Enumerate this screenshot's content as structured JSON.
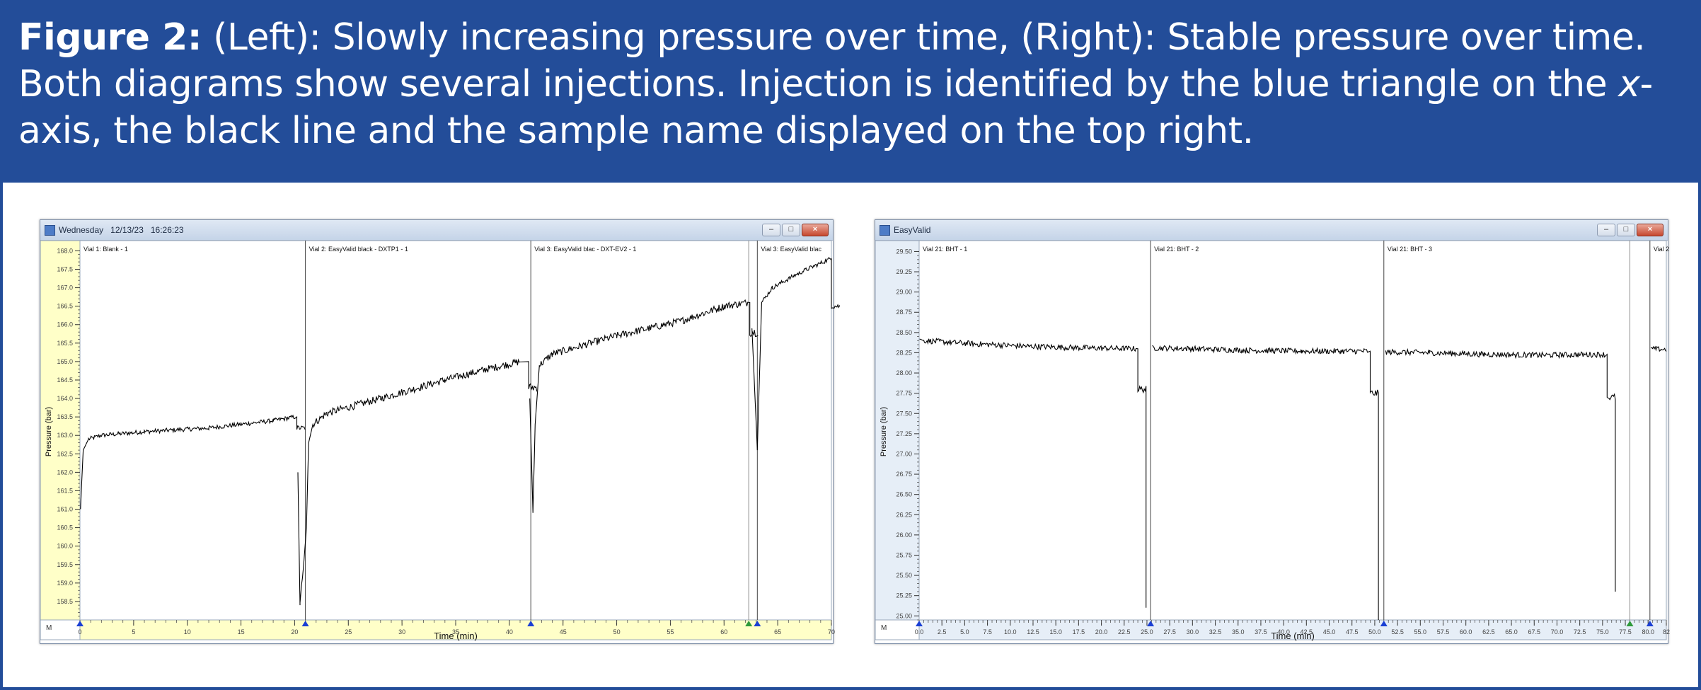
{
  "caption": {
    "label": "Figure 2:",
    "part1": " (Left): Slowly increasing pressure over time, (Right): Stable pressure over time. Both diagrams show several injections. Injection is identified by the blue triangle on the ",
    "axis_word": "x",
    "part2": "-axis, the black line and the sample name displayed on the top right."
  },
  "colors": {
    "banner": "#234d99",
    "yellow_axis": "#ffffc8",
    "axis_light": "#e6eef7",
    "marker_blue": "#1a3fd4",
    "marker_green": "#2e9a3a",
    "trace": "#000000"
  },
  "chart_data": [
    {
      "type": "line",
      "window_title": "Wednesday   12/13/23   16:26:23",
      "corner_label": "M",
      "ylabel": "Pressure (bar)",
      "xlabel": "Time (min)",
      "xlim": [
        0,
        70
      ],
      "ylim": [
        158.0,
        168.2
      ],
      "yticks": [
        "168.0",
        "167.5",
        "167.0",
        "166.5",
        "166.0",
        "165.5",
        "165.0",
        "164.5",
        "164.0",
        "163.5",
        "163.0",
        "162.5",
        "162.0",
        "161.5",
        "161.0",
        "160.5",
        "160.0",
        "159.5",
        "159.0",
        "158.5"
      ],
      "xticks": [
        "0",
        "5",
        "10",
        "15",
        "20",
        "25",
        "30",
        "35",
        "40",
        "45",
        "50",
        "55",
        "60",
        "65",
        "70"
      ],
      "injections": [
        {
          "time": 0.0,
          "label": "Vial   1: Blank - 1",
          "color": "blue"
        },
        {
          "time": 21.0,
          "label": "Vial   2: EasyValid black - DXTP1 - 1",
          "color": "blue"
        },
        {
          "time": 42.0,
          "label": "Vial   3: EasyValid blac - DXT-EV2 - 1",
          "color": "blue"
        },
        {
          "time": 62.3,
          "label": "",
          "color": "green"
        },
        {
          "time": 63.1,
          "label": "Vial   3: EasyValid blac",
          "color": "blue"
        }
      ],
      "segments": [
        {
          "start": 0.0,
          "end": 20.2,
          "points": [
            [
              0.05,
              161.0
            ],
            [
              0.3,
              162.6
            ],
            [
              0.8,
              162.9
            ],
            [
              2.0,
              163.0
            ],
            [
              6.0,
              163.1
            ],
            [
              12.0,
              163.2
            ],
            [
              18.0,
              163.4
            ],
            [
              20.0,
              163.5
            ]
          ],
          "noise": 0.06,
          "dip": 163.2
        },
        {
          "start": 20.2,
          "end": 41.8,
          "points": [
            [
              20.3,
              162.0
            ],
            [
              20.5,
              158.4
            ],
            [
              21.1,
              160.5
            ],
            [
              21.3,
              162.8
            ],
            [
              21.7,
              163.3
            ],
            [
              23.0,
              163.6
            ],
            [
              28.0,
              164.0
            ],
            [
              34.0,
              164.5
            ],
            [
              38.0,
              164.8
            ],
            [
              41.0,
              165.0
            ]
          ],
          "noise": 0.1,
          "dip": 164.3
        },
        {
          "start": 41.8,
          "end": 62.4,
          "points": [
            [
              41.9,
              164.0
            ],
            [
              42.2,
              160.9
            ],
            [
              42.4,
              163.3
            ],
            [
              42.8,
              164.9
            ],
            [
              44.0,
              165.2
            ],
            [
              50.0,
              165.7
            ],
            [
              56.0,
              166.1
            ],
            [
              60.0,
              166.5
            ],
            [
              62.2,
              166.6
            ]
          ],
          "noise": 0.1,
          "dip": 165.8
        },
        {
          "start": 62.4,
          "end": 70.0,
          "points": [
            [
              62.6,
              165.9
            ],
            [
              63.1,
              162.6
            ],
            [
              63.5,
              166.6
            ],
            [
              64.5,
              167.0
            ],
            [
              67.0,
              167.4
            ],
            [
              70.0,
              167.8
            ]
          ],
          "noise": 0.06,
          "dip": 166.5
        }
      ]
    },
    {
      "type": "line",
      "window_title": "EasyValid",
      "corner_label": "M",
      "ylabel": "Pressure (bar)",
      "xlabel": "Time (min)",
      "xlim": [
        0,
        82
      ],
      "ylim": [
        24.95,
        29.6
      ],
      "yticks": [
        "29.50",
        "29.25",
        "29.00",
        "28.75",
        "28.50",
        "28.25",
        "28.00",
        "27.75",
        "27.50",
        "27.25",
        "27.00",
        "26.75",
        "26.50",
        "26.25",
        "26.00",
        "25.75",
        "25.50",
        "25.25",
        "25.00"
      ],
      "xticks": [
        "0.0",
        "2.5",
        "5.0",
        "7.5",
        "10.0",
        "12.5",
        "15.0",
        "17.5",
        "20.0",
        "22.5",
        "25.0",
        "27.5",
        "30.0",
        "32.5",
        "35.0",
        "37.5",
        "40.0",
        "42.5",
        "45.0",
        "47.5",
        "50.0",
        "52.5",
        "55.0",
        "57.5",
        "60.0",
        "62.5",
        "65.0",
        "67.5",
        "70.0",
        "72.5",
        "75.0",
        "77.5",
        "80.0",
        "82"
      ],
      "injections": [
        {
          "time": 0.0,
          "label": "Vial   21: BHT - 1",
          "color": "blue"
        },
        {
          "time": 25.4,
          "label": "Vial   21: BHT - 2",
          "color": "blue"
        },
        {
          "time": 51.0,
          "label": "Vial   21: BHT - 3",
          "color": "blue"
        },
        {
          "time": 78.0,
          "label": "",
          "color": "green"
        },
        {
          "time": 80.2,
          "label": "Vial   2",
          "color": "blue"
        }
      ],
      "segments": [
        {
          "start": 0.0,
          "end": 24.0,
          "points": [
            [
              0.05,
              28.42
            ],
            [
              0.5,
              28.4
            ],
            [
              6.0,
              28.36
            ],
            [
              12.0,
              28.33
            ],
            [
              18.0,
              28.31
            ],
            [
              23.8,
              28.3
            ]
          ],
          "noise": 0.035,
          "dip": 27.8,
          "spike_down": 25.1
        },
        {
          "start": 25.4,
          "end": 49.5,
          "points": [
            [
              25.6,
              28.31
            ],
            [
              30.0,
              28.3
            ],
            [
              36.0,
              28.28
            ],
            [
              42.0,
              28.27
            ],
            [
              49.2,
              28.27
            ]
          ],
          "noise": 0.035,
          "dip": 27.75,
          "spike_down": 24.95
        },
        {
          "start": 51.0,
          "end": 75.5,
          "points": [
            [
              51.2,
              28.26
            ],
            [
              56.0,
              28.25
            ],
            [
              62.0,
              28.23
            ],
            [
              68.0,
              28.22
            ],
            [
              75.2,
              28.23
            ]
          ],
          "noise": 0.035,
          "dip": 27.7,
          "spike_down": 25.3
        },
        {
          "start": 80.3,
          "end": 82.0,
          "points": [
            [
              80.3,
              28.3
            ],
            [
              82.0,
              28.29
            ]
          ],
          "noise": 0.03
        }
      ]
    }
  ]
}
